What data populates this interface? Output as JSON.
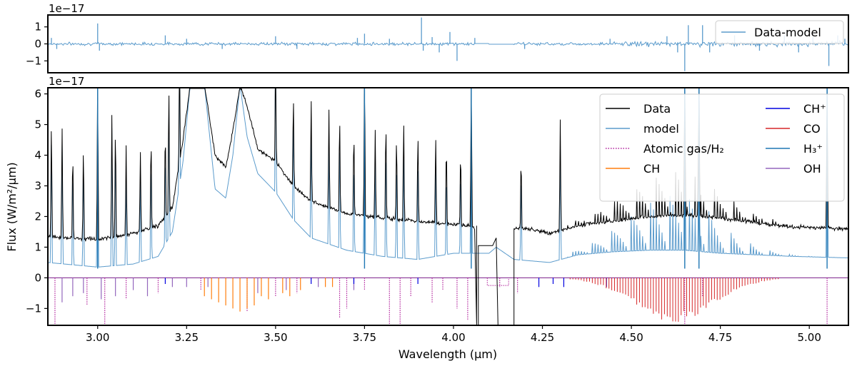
{
  "chart_data": [
    {
      "type": "line",
      "panel": "residuals",
      "offset_label": "1e−17",
      "xlim": [
        2.86,
        5.11
      ],
      "ylim": [
        -1.7,
        1.7
      ],
      "yticks": [
        -1,
        0,
        1
      ],
      "ytick_labels": [
        "−1",
        "0",
        "1"
      ],
      "legend": [
        "Data-model"
      ],
      "legend_position": "top-right",
      "series": [
        {
          "name": "Data-model",
          "color": "#5b9bcc",
          "kind": "noise",
          "noise_sigma": 0.07,
          "gap": [
            4.06,
            4.17
          ],
          "spikes": [
            [
              2.87,
              0.35
            ],
            [
              2.885,
              -0.3
            ],
            [
              3.0,
              1.2
            ],
            [
              3.005,
              -0.4
            ],
            [
              3.19,
              0.5
            ],
            [
              3.25,
              0.3
            ],
            [
              3.35,
              -0.3
            ],
            [
              3.5,
              0.45
            ],
            [
              3.56,
              -0.3
            ],
            [
              3.73,
              0.35
            ],
            [
              3.75,
              0.6
            ],
            [
              3.82,
              0.3
            ],
            [
              3.91,
              1.55
            ],
            [
              3.915,
              -0.4
            ],
            [
              3.94,
              0.4
            ],
            [
              3.96,
              -0.5
            ],
            [
              3.99,
              0.7
            ],
            [
              4.01,
              -1.0
            ],
            [
              4.06,
              0.35
            ],
            [
              4.2,
              -0.3
            ],
            [
              4.44,
              0.3
            ],
            [
              4.6,
              0.45
            ],
            [
              4.63,
              -0.5
            ],
            [
              4.65,
              -1.6
            ],
            [
              4.66,
              1.1
            ],
            [
              4.7,
              1.1
            ],
            [
              4.72,
              -0.5
            ],
            [
              4.79,
              0.5
            ],
            [
              4.86,
              -0.4
            ],
            [
              4.93,
              0.5
            ],
            [
              4.97,
              -0.5
            ],
            [
              5.01,
              0.4
            ],
            [
              5.055,
              -1.3
            ],
            [
              5.08,
              0.5
            ],
            [
              5.1,
              0.3
            ]
          ]
        }
      ]
    },
    {
      "type": "line",
      "panel": "spectrum",
      "offset_label": "1e−17",
      "xlabel": "Wavelength (μm)",
      "ylabel": "Flux (W/m²/μm)",
      "xlim": [
        2.86,
        5.11
      ],
      "ylim": [
        -1.55,
        6.2
      ],
      "xticks": [
        3.0,
        3.25,
        3.5,
        3.75,
        4.0,
        4.25,
        4.5,
        4.75,
        5.0
      ],
      "xtick_labels": [
        "3.00",
        "3.25",
        "3.50",
        "3.75",
        "4.00",
        "4.25",
        "4.50",
        "4.75",
        "5.00"
      ],
      "yticks": [
        -1,
        0,
        1,
        2,
        3,
        4,
        5,
        6
      ],
      "ytick_labels": [
        "−1",
        "0",
        "1",
        "2",
        "3",
        "4",
        "5",
        "6"
      ],
      "legend_position": "top-right",
      "series": [
        {
          "name": "Data",
          "color": "#000000",
          "style": "solid",
          "continuum": [
            [
              2.86,
              1.35
            ],
            [
              3.0,
              1.25
            ],
            [
              3.1,
              1.45
            ],
            [
              3.17,
              1.7
            ],
            [
              3.21,
              2.3
            ],
            [
              3.24,
              4.5
            ],
            [
              3.26,
              6.3
            ],
            [
              3.29,
              6.2
            ],
            [
              3.3,
              6.3
            ],
            [
              3.33,
              4.0
            ],
            [
              3.36,
              3.6
            ],
            [
              3.38,
              4.8
            ],
            [
              3.4,
              6.3
            ],
            [
              3.42,
              5.6
            ],
            [
              3.45,
              4.2
            ],
            [
              3.5,
              3.8
            ],
            [
              3.55,
              3.0
            ],
            [
              3.6,
              2.5
            ],
            [
              3.7,
              2.1
            ],
            [
              3.8,
              1.95
            ],
            [
              3.9,
              1.85
            ],
            [
              4.05,
              1.7
            ],
            [
              4.06,
              1.6
            ]
          ],
          "continuum2": [
            [
              4.17,
              1.6
            ],
            [
              4.22,
              1.6
            ],
            [
              4.27,
              1.45
            ],
            [
              4.35,
              1.7
            ],
            [
              4.45,
              1.85
            ],
            [
              4.55,
              2.0
            ],
            [
              4.65,
              2.05
            ],
            [
              4.75,
              1.95
            ],
            [
              4.85,
              1.8
            ],
            [
              4.95,
              1.65
            ],
            [
              5.11,
              1.6
            ]
          ],
          "noise_sigma": 0.05
        },
        {
          "name": "model",
          "color": "#5b9bcc",
          "style": "solid",
          "continuum": [
            [
              2.86,
              0.5
            ],
            [
              3.0,
              0.35
            ],
            [
              3.1,
              0.45
            ],
            [
              3.17,
              0.7
            ],
            [
              3.21,
              1.5
            ],
            [
              3.24,
              3.8
            ],
            [
              3.26,
              6.3
            ],
            [
              3.29,
              6.2
            ],
            [
              3.3,
              6.3
            ],
            [
              3.33,
              2.9
            ],
            [
              3.36,
              2.6
            ],
            [
              3.38,
              4.0
            ],
            [
              3.4,
              6.3
            ],
            [
              3.42,
              4.6
            ],
            [
              3.45,
              3.4
            ],
            [
              3.5,
              2.8
            ],
            [
              3.55,
              1.9
            ],
            [
              3.6,
              1.3
            ],
            [
              3.7,
              0.9
            ],
            [
              3.8,
              0.7
            ],
            [
              3.9,
              0.6
            ],
            [
              4.0,
              0.8
            ],
            [
              4.06,
              0.8
            ],
            [
              4.1,
              0.8
            ],
            [
              4.12,
              1.0
            ],
            [
              4.17,
              0.6
            ],
            [
              4.22,
              0.55
            ],
            [
              4.27,
              0.5
            ],
            [
              4.35,
              0.75
            ],
            [
              4.45,
              0.85
            ],
            [
              4.55,
              0.9
            ],
            [
              4.65,
              0.9
            ],
            [
              4.75,
              0.8
            ],
            [
              4.85,
              0.75
            ],
            [
              4.95,
              0.7
            ],
            [
              5.11,
              0.65
            ]
          ]
        },
        {
          "name": "Atomic gas/H₂",
          "color": "#b0209b",
          "style": "dotted"
        },
        {
          "name": "CH",
          "color": "#ff7f0e",
          "style": "solid"
        },
        {
          "name": "CH⁺",
          "color": "#0000e0",
          "style": "solid"
        },
        {
          "name": "CO",
          "color": "#d62728",
          "style": "solid"
        },
        {
          "name": "H₃⁺",
          "color": "#1f77b4",
          "style": "solid"
        },
        {
          "name": "OH",
          "color": "#9467bd",
          "style": "solid"
        }
      ],
      "emission_lines": [
        [
          2.87,
          4.5
        ],
        [
          2.9,
          4.2
        ],
        [
          2.93,
          3.6
        ],
        [
          2.96,
          3.7
        ],
        [
          3.0,
          6.3
        ],
        [
          3.04,
          4.8
        ],
        [
          3.05,
          4.5
        ],
        [
          3.08,
          3.2
        ],
        [
          3.12,
          3.0
        ],
        [
          3.15,
          3.7
        ],
        [
          3.19,
          3.6
        ],
        [
          3.2,
          5.0
        ],
        [
          3.23,
          6.3
        ],
        [
          3.5,
          6.3
        ],
        [
          3.55,
          3.6
        ],
        [
          3.6,
          4.0
        ],
        [
          3.65,
          3.6
        ],
        [
          3.68,
          3.9
        ],
        [
          3.72,
          3.4
        ],
        [
          3.75,
          6.3
        ],
        [
          3.78,
          3.3
        ],
        [
          3.81,
          4.0
        ],
        [
          3.84,
          3.4
        ],
        [
          3.86,
          3.9
        ],
        [
          3.9,
          3.6
        ],
        [
          3.95,
          3.4
        ],
        [
          3.98,
          3.2
        ],
        [
          4.02,
          3.1
        ],
        [
          4.05,
          6.3
        ],
        [
          4.19,
          3.0
        ],
        [
          4.3,
          4.1
        ],
        [
          4.65,
          6.3
        ],
        [
          4.69,
          6.3
        ],
        [
          5.05,
          6.3
        ]
      ],
      "co_band": {
        "from": 4.32,
        "to": 5.11,
        "peak": 4.62,
        "depth": -1.45,
        "spacing": 0.0078,
        "em_peak": 3.6
      },
      "absorption_lines": [
        {
          "species": "Atomic gas/H₂",
          "lines": [
            [
              2.88,
              -1.5
            ],
            [
              2.97,
              -0.9
            ],
            [
              3.02,
              -1.5
            ],
            [
              3.08,
              -0.7
            ],
            [
              3.17,
              -0.5
            ],
            [
              3.29,
              -0.4
            ],
            [
              3.42,
              -1.1
            ],
            [
              3.5,
              -0.6
            ],
            [
              3.56,
              -0.5
            ],
            [
              3.68,
              -1.3
            ],
            [
              3.7,
              -1.0
            ],
            [
              3.75,
              -0.4
            ],
            [
              3.82,
              -1.5
            ],
            [
              3.85,
              -1.5
            ],
            [
              3.88,
              -0.6
            ],
            [
              3.94,
              -0.8
            ],
            [
              3.97,
              -0.4
            ],
            [
              4.01,
              -1.0
            ],
            [
              4.04,
              -1.4
            ],
            [
              4.13,
              -0.3
            ],
            [
              4.18,
              -0.5
            ],
            [
              4.65,
              -1.5
            ],
            [
              4.7,
              -0.6
            ],
            [
              5.05,
              -1.5
            ]
          ]
        },
        {
          "species": "OH",
          "lines": [
            [
              2.9,
              -0.8
            ],
            [
              2.93,
              -0.6
            ],
            [
              2.96,
              -0.5
            ],
            [
              3.01,
              -0.7
            ],
            [
              3.05,
              -0.6
            ],
            [
              3.1,
              -0.4
            ],
            [
              3.14,
              -0.6
            ],
            [
              3.21,
              -0.3
            ],
            [
              3.25,
              -0.3
            ],
            [
              3.31,
              -0.3
            ],
            [
              3.45,
              -0.5
            ],
            [
              3.53,
              -0.4
            ],
            [
              3.62,
              -0.3
            ],
            [
              3.72,
              -0.4
            ]
          ]
        },
        {
          "species": "CH",
          "lines": [
            [
              3.3,
              -0.6
            ],
            [
              3.32,
              -0.7
            ],
            [
              3.34,
              -0.8
            ],
            [
              3.36,
              -0.9
            ],
            [
              3.38,
              -1.0
            ],
            [
              3.4,
              -1.1
            ],
            [
              3.42,
              -1.0
            ],
            [
              3.44,
              -0.9
            ],
            [
              3.46,
              -0.6
            ],
            [
              3.48,
              -0.7
            ],
            [
              3.52,
              -0.5
            ],
            [
              3.54,
              -0.6
            ],
            [
              3.57,
              -0.4
            ],
            [
              3.64,
              -0.3
            ],
            [
              3.66,
              -0.3
            ]
          ]
        },
        {
          "species": "CH⁺",
          "lines": [
            [
              3.19,
              -0.2
            ],
            [
              3.6,
              -0.2
            ],
            [
              3.72,
              -0.2
            ],
            [
              3.9,
              -0.2
            ],
            [
              4.24,
              -0.3
            ],
            [
              4.28,
              -0.2
            ],
            [
              4.31,
              -0.3
            ],
            [
              4.43,
              -0.3
            ]
          ]
        }
      ]
    }
  ]
}
